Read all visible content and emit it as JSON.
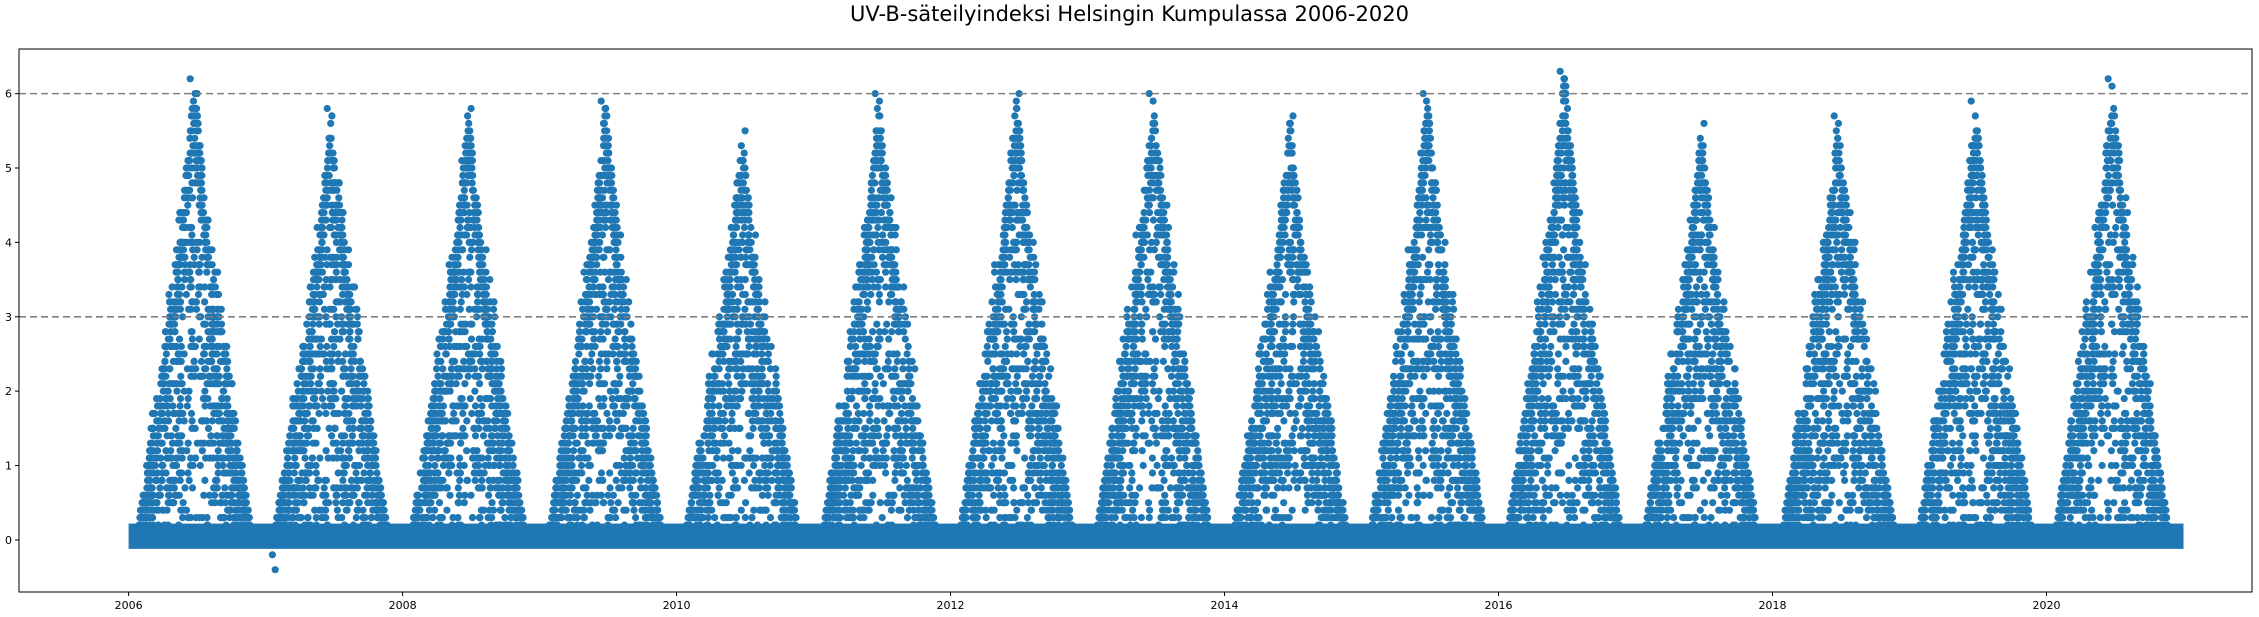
{
  "chart_data": {
    "type": "scatter",
    "title": "UV-B-säteilyindeksi Helsingin Kumpulassa 2006-2020",
    "xlabel": "",
    "ylabel": "",
    "xlim": [
      2005.2,
      2021.5
    ],
    "ylim": [
      -0.7,
      6.6
    ],
    "x_ticks": [
      "2006",
      "2008",
      "2010",
      "2012",
      "2014",
      "2016",
      "2018",
      "2020"
    ],
    "x_tick_values": [
      2006,
      2008,
      2010,
      2012,
      2014,
      2016,
      2018,
      2020
    ],
    "y_ticks": [
      "0",
      "1",
      "2",
      "3",
      "4",
      "5",
      "6"
    ],
    "y_tick_values": [
      0,
      1,
      2,
      3,
      4,
      5,
      6
    ],
    "reference_lines": [
      3,
      6
    ],
    "grid": false,
    "marker_color": "#1f77b4",
    "reference_line_color": "#808080",
    "series": [
      {
        "description_years": [
          2006,
          2007,
          2008,
          2009,
          2010,
          2011,
          2012,
          2013,
          2014,
          2015,
          2016,
          2017,
          2018,
          2019,
          2020
        ],
        "annual_peak_uv": [
          6.2,
          5.8,
          5.8,
          5.9,
          5.5,
          6.0,
          6.0,
          6.0,
          5.7,
          6.0,
          6.3,
          5.6,
          5.7,
          5.9,
          6.2
        ],
        "x": [
          2006.45,
          2006.5,
          2007.05,
          2007.07,
          2007.45,
          2008.5,
          2009.45,
          2010.5,
          2011.45,
          2012.5,
          2013.45,
          2013.85,
          2014.5,
          2015.45,
          2016.45,
          2016.48,
          2017.5,
          2018.45,
          2019.45,
          2020.45
        ],
        "y": [
          6.2,
          6.0,
          -0.2,
          -0.4,
          5.8,
          5.8,
          5.9,
          5.5,
          6.0,
          6.0,
          6.0,
          0.0,
          5.7,
          6.0,
          6.3,
          6.2,
          5.6,
          5.7,
          5.9,
          6.2
        ]
      }
    ]
  }
}
